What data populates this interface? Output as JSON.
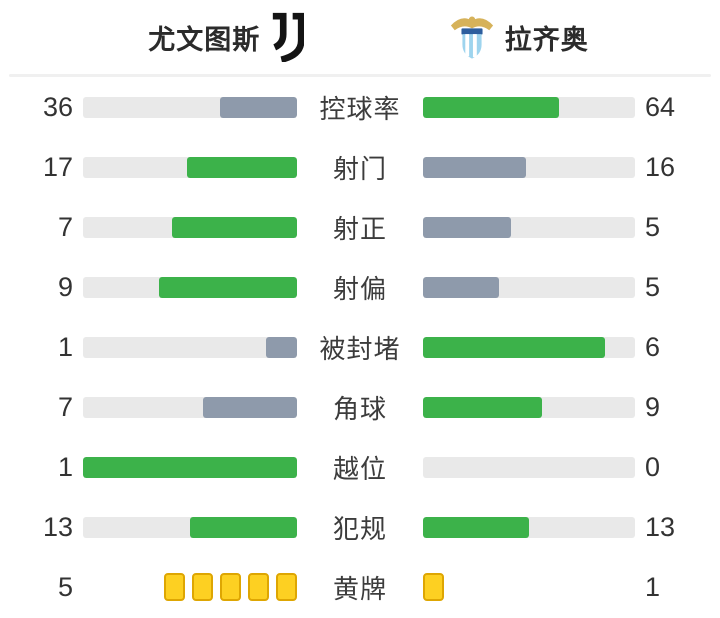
{
  "header": {
    "home": {
      "name": "尤文图斯",
      "logo_icon": "juventus-logo"
    },
    "away": {
      "name": "拉齐奥",
      "logo_icon": "lazio-crest"
    }
  },
  "colors": {
    "bar_leading": "#3cb24a",
    "bar_trailing": "#8e9aab",
    "bar_track": "#e9e9e9",
    "yellow_card_fill": "#fdd022",
    "yellow_card_border": "#dea602",
    "text": "#333333"
  },
  "stats": {
    "rows": [
      {
        "label": "控球率",
        "home": 36,
        "away": 64,
        "type": "bars"
      },
      {
        "label": "射门",
        "home": 17,
        "away": 16,
        "type": "bars"
      },
      {
        "label": "射正",
        "home": 7,
        "away": 5,
        "type": "bars"
      },
      {
        "label": "射偏",
        "home": 9,
        "away": 5,
        "type": "bars"
      },
      {
        "label": "被封堵",
        "home": 1,
        "away": 6,
        "type": "bars"
      },
      {
        "label": "角球",
        "home": 7,
        "away": 9,
        "type": "bars"
      },
      {
        "label": "越位",
        "home": 1,
        "away": 0,
        "type": "bars"
      },
      {
        "label": "犯规",
        "home": 13,
        "away": 13,
        "type": "bars"
      },
      {
        "label": "黄牌",
        "home": 5,
        "away": 1,
        "type": "cards"
      }
    ]
  }
}
